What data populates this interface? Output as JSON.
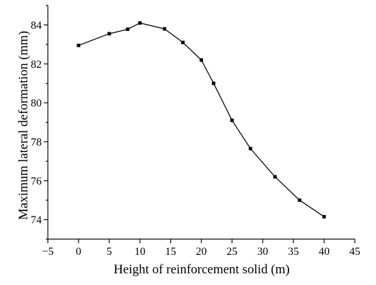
{
  "chart_data": {
    "type": "line",
    "xlabel": "Height of reinforcement solid (m)",
    "ylabel": "Maximum lateral deformation (mm)",
    "xlim": [
      -5,
      45
    ],
    "ylim": [
      73,
      85
    ],
    "xticks": [
      -5,
      0,
      5,
      10,
      15,
      20,
      25,
      30,
      35,
      40,
      45
    ],
    "yticks": [
      74,
      76,
      78,
      80,
      82,
      84
    ],
    "grid": false,
    "legend": "none",
    "series": [
      {
        "x": [
          0,
          5,
          8,
          10,
          14,
          17,
          20,
          22,
          25,
          28,
          32,
          36,
          40
        ],
        "y": [
          82.95,
          83.55,
          83.78,
          84.1,
          83.8,
          83.1,
          82.2,
          81.0,
          79.1,
          77.65,
          76.2,
          75.0,
          74.15
        ]
      }
    ],
    "line_color": "#000000",
    "marker": "square"
  }
}
